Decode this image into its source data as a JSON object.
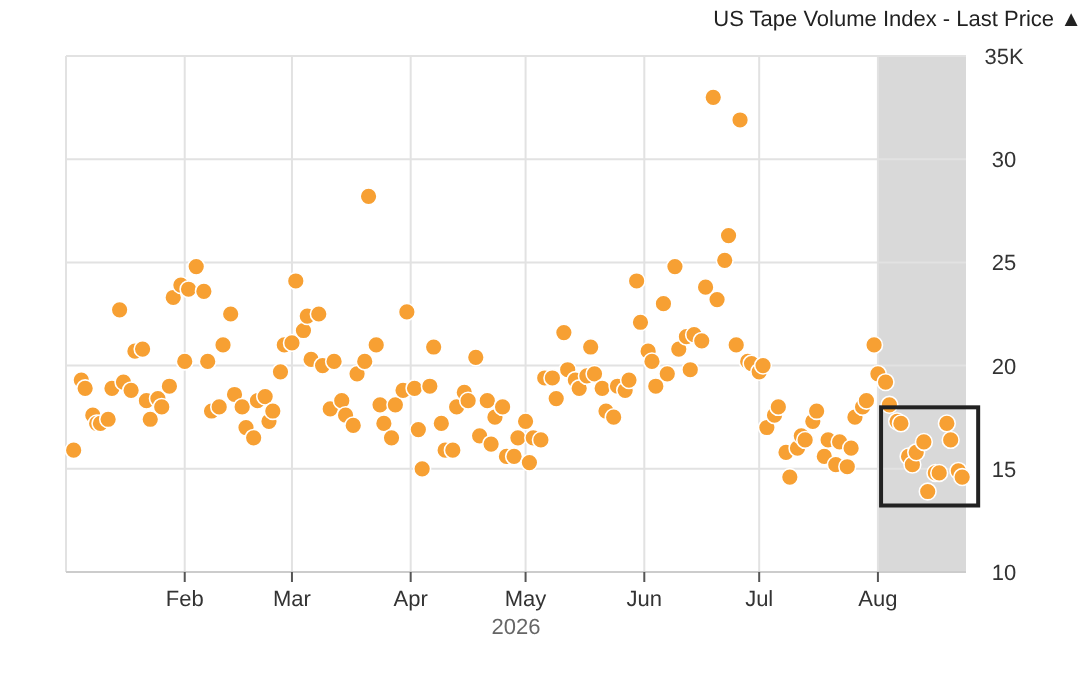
{
  "chart_data": {
    "type": "scatter",
    "title": "US Tape Volume Index - Last Price ▲",
    "xlabel": "2026",
    "x": [
      "2026-01-03",
      "2026-01-05",
      "2026-01-06",
      "2026-01-08",
      "2026-01-09",
      "2026-01-10",
      "2026-01-12",
      "2026-01-13",
      "2026-01-15",
      "2026-01-16",
      "2026-01-18",
      "2026-01-19",
      "2026-01-21",
      "2026-01-22",
      "2026-01-23",
      "2026-01-25",
      "2026-01-26",
      "2026-01-28",
      "2026-01-29",
      "2026-01-31",
      "2026-02-01",
      "2026-02-02",
      "2026-02-04",
      "2026-02-06",
      "2026-02-07",
      "2026-02-08",
      "2026-02-10",
      "2026-02-11",
      "2026-02-13",
      "2026-02-14",
      "2026-02-16",
      "2026-02-17",
      "2026-02-19",
      "2026-02-20",
      "2026-02-22",
      "2026-02-23",
      "2026-02-24",
      "2026-02-26",
      "2026-02-27",
      "2026-03-01",
      "2026-03-02",
      "2026-03-04",
      "2026-03-05",
      "2026-03-06",
      "2026-03-08",
      "2026-03-09",
      "2026-03-11",
      "2026-03-12",
      "2026-03-14",
      "2026-03-15",
      "2026-03-17",
      "2026-03-18",
      "2026-03-20",
      "2026-03-21",
      "2026-03-23",
      "2026-03-24",
      "2026-03-25",
      "2026-03-27",
      "2026-03-28",
      "2026-03-30",
      "2026-03-31",
      "2026-04-02",
      "2026-04-03",
      "2026-04-04",
      "2026-04-06",
      "2026-04-07",
      "2026-04-09",
      "2026-04-10",
      "2026-04-12",
      "2026-04-13",
      "2026-04-15",
      "2026-04-16",
      "2026-04-18",
      "2026-04-19",
      "2026-04-21",
      "2026-04-22",
      "2026-04-23",
      "2026-04-25",
      "2026-04-26",
      "2026-04-28",
      "2026-04-29",
      "2026-05-01",
      "2026-05-02",
      "2026-05-03",
      "2026-05-05",
      "2026-05-06",
      "2026-05-08",
      "2026-05-09",
      "2026-05-11",
      "2026-05-12",
      "2026-05-14",
      "2026-05-15",
      "2026-05-17",
      "2026-05-18",
      "2026-05-19",
      "2026-05-21",
      "2026-05-22",
      "2026-05-24",
      "2026-05-25",
      "2026-05-27",
      "2026-05-28",
      "2026-05-30",
      "2026-05-31",
      "2026-06-02",
      "2026-06-03",
      "2026-06-04",
      "2026-06-06",
      "2026-06-07",
      "2026-06-09",
      "2026-06-10",
      "2026-06-12",
      "2026-06-13",
      "2026-06-14",
      "2026-06-16",
      "2026-06-17",
      "2026-06-19",
      "2026-06-20",
      "2026-06-22",
      "2026-06-23",
      "2026-06-25",
      "2026-06-26",
      "2026-06-28",
      "2026-06-29",
      "2026-07-01",
      "2026-07-02",
      "2026-07-03",
      "2026-07-05",
      "2026-07-06",
      "2026-07-08",
      "2026-07-09",
      "2026-07-11",
      "2026-07-12",
      "2026-07-13",
      "2026-07-15",
      "2026-07-16",
      "2026-07-18",
      "2026-07-19",
      "2026-07-21",
      "2026-07-22",
      "2026-07-24",
      "2026-07-25",
      "2026-07-26",
      "2026-07-28",
      "2026-07-29",
      "2026-07-31",
      "2026-08-01",
      "2026-08-03",
      "2026-08-04",
      "2026-08-06",
      "2026-08-07",
      "2026-08-09",
      "2026-08-10",
      "2026-08-11",
      "2026-08-13",
      "2026-08-14",
      "2026-08-16",
      "2026-08-17",
      "2026-08-19",
      "2026-08-20",
      "2026-08-22",
      "2026-08-23"
    ],
    "series": [
      {
        "color": "#f7a033",
        "values": [
          15.9,
          19.3,
          18.9,
          17.6,
          17.2,
          17.2,
          17.4,
          18.9,
          22.7,
          19.2,
          18.8,
          20.7,
          20.8,
          18.3,
          17.4,
          18.4,
          18.0,
          19.0,
          23.3,
          23.9,
          20.2,
          23.7,
          24.8,
          23.6,
          20.2,
          17.8,
          18.0,
          21.0,
          22.5,
          18.6,
          18.0,
          17.0,
          16.5,
          18.3,
          18.5,
          17.3,
          17.8,
          19.7,
          21.0,
          21.1,
          24.1,
          21.7,
          22.4,
          20.3,
          22.5,
          20.0,
          17.9,
          20.2,
          18.3,
          17.6,
          17.1,
          19.6,
          20.2,
          28.2,
          21.0,
          18.1,
          17.2,
          16.5,
          18.1,
          18.8,
          22.6,
          18.9,
          16.9,
          15.0,
          19.0,
          20.9,
          17.2,
          15.9,
          15.9,
          18.0,
          18.7,
          18.3,
          20.4,
          16.6,
          18.3,
          16.2,
          17.5,
          18.0,
          15.6,
          15.6,
          16.5,
          17.3,
          15.3,
          16.5,
          16.4,
          19.4,
          19.4,
          18.4,
          21.6,
          19.8,
          19.3,
          18.9,
          19.5,
          20.9,
          19.6,
          18.9,
          17.8,
          17.5,
          19.0,
          18.8,
          19.3,
          24.1,
          22.1,
          20.7,
          20.2,
          19.0,
          23.0,
          19.6,
          24.8,
          20.8,
          21.4,
          19.8,
          21.5,
          21.2,
          23.8,
          33.0,
          23.2,
          25.1,
          26.3,
          21.0,
          31.9,
          20.2,
          20.1,
          19.7,
          20.0,
          17.0,
          17.6,
          18.0,
          15.8,
          14.6,
          16.0,
          16.6,
          16.4,
          17.3,
          17.8,
          15.6,
          16.4,
          15.2,
          16.3,
          15.1,
          16.0,
          17.5,
          18.0,
          18.3,
          21.0,
          19.6,
          19.2,
          18.1,
          17.3,
          17.2,
          15.6,
          15.2,
          15.8,
          16.3,
          13.9,
          14.8,
          14.8,
          17.2,
          16.4,
          14.9,
          14.6
        ]
      }
    ],
    "xlim": [
      "2026-01-01",
      "2026-08-24"
    ],
    "xticks": [
      {
        "value": "2026-02-01",
        "label": "Feb"
      },
      {
        "value": "2026-03-01",
        "label": "Mar"
      },
      {
        "value": "2026-04-01",
        "label": "Apr"
      },
      {
        "value": "2026-05-01",
        "label": "May"
      },
      {
        "value": "2026-06-01",
        "label": "Jun"
      },
      {
        "value": "2026-07-01",
        "label": "Jul"
      },
      {
        "value": "2026-08-01",
        "label": "Aug"
      }
    ],
    "ylim": [
      10,
      35
    ],
    "yticks": [
      10,
      15,
      20,
      25,
      30,
      {
        "value": 35,
        "label": "35K"
      }
    ],
    "grid": true,
    "marker": "circle",
    "bands": [
      {
        "axis": "x",
        "from": "2026-08-01",
        "to": "2026-08-24",
        "color": "#d9d9d9"
      }
    ]
  }
}
